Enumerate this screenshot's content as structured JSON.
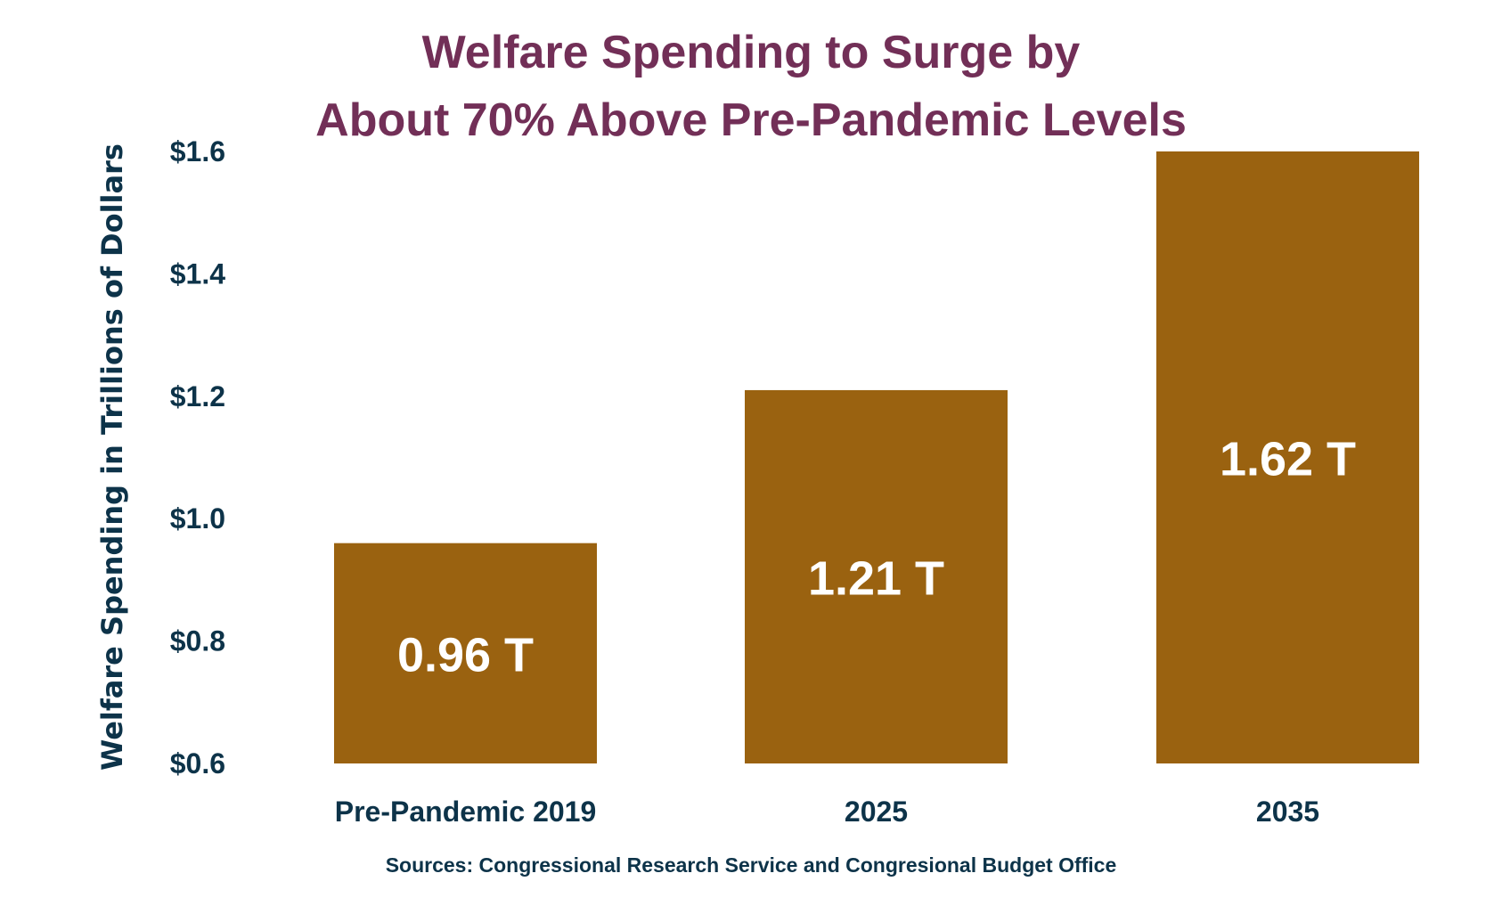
{
  "chart_data": {
    "type": "bar",
    "title": [
      "Welfare Spending to Surge by",
      "About 70% Above Pre-Pandemic Levels"
    ],
    "ylabel": "Welfare Spending in Trillions of Dollars",
    "xlabel": "",
    "categories": [
      "Pre-Pandemic 2019",
      "2025",
      "2035"
    ],
    "values": [
      0.96,
      1.21,
      1.62
    ],
    "data_labels": [
      "0.96 T",
      "1.21 T",
      "1.62 T"
    ],
    "ylim": [
      0.6,
      1.6
    ],
    "yticks": [
      0.6,
      0.8,
      1.0,
      1.2,
      1.4,
      1.6
    ],
    "ytick_labels": [
      "$0.6",
      "$0.8",
      "$1.0",
      "$1.2",
      "$1.4",
      "$1.6"
    ],
    "grid": false,
    "legend": "none",
    "colors": {
      "bar": "#9A6210",
      "title": "#722F57",
      "text": "#0D3349",
      "data_label": "#FFFFFF"
    },
    "source": "Sources: Congressional Research Service and Congresional Budget Office"
  }
}
